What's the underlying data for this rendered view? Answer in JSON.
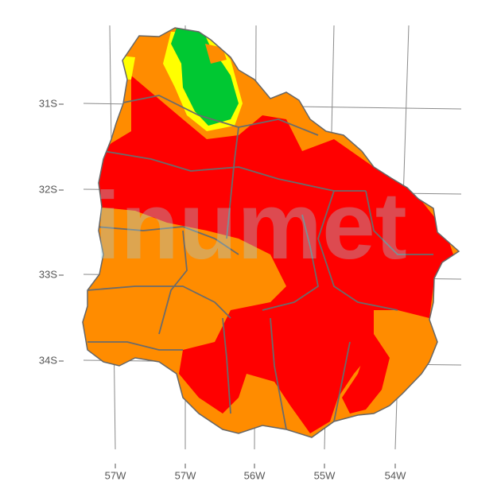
{
  "map": {
    "watermark": "inumet",
    "y_axis_labels": [
      "31S",
      "32S",
      "33S",
      "34S"
    ],
    "x_axis_labels": [
      "57W",
      "57W",
      "56W",
      "55W",
      "54W"
    ]
  }
}
